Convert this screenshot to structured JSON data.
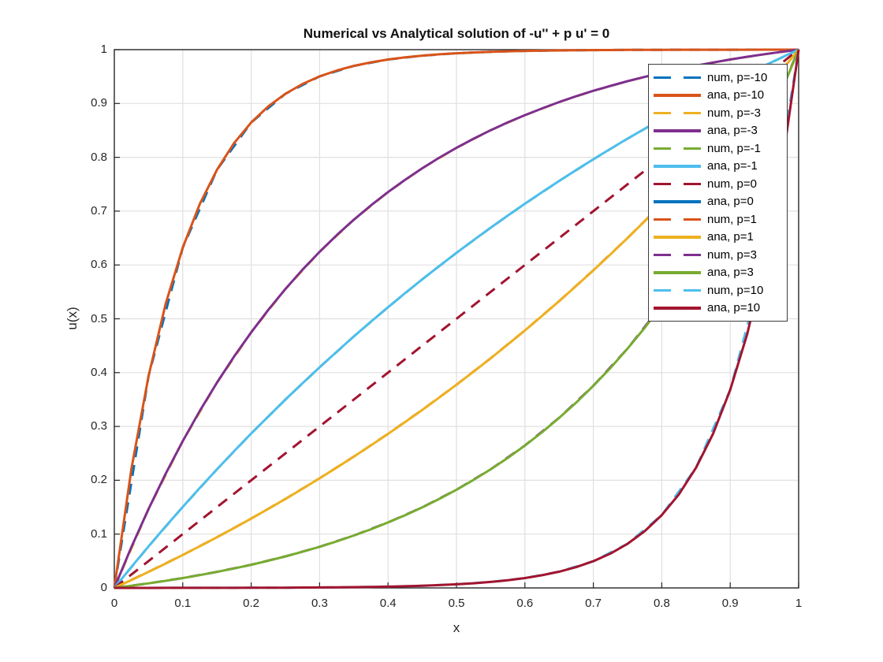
{
  "figure": {
    "title": "Numerical vs Analytical solution of -u'' + p u' = 0",
    "xlabel": "x",
    "ylabel": "u(x)",
    "background": "#ffffff"
  },
  "style_colors": {
    "axis": "#262626",
    "grid": "#e0e0e0",
    "tick_text": "#262626",
    "legend_border": "#3c3c3c",
    "legend_background": "#ffffff"
  },
  "chart_data": {
    "type": "line",
    "title": "Numerical vs Analytical solution of -u'' + p u' = 0",
    "xlabel": "x",
    "ylabel": "u(x)",
    "xlim": [
      0,
      1
    ],
    "ylim": [
      0,
      1
    ],
    "grid": true,
    "legend_location": "northeast",
    "x_tick_values": [
      0,
      0.1,
      0.2,
      0.3,
      0.4,
      0.5,
      0.6,
      0.7,
      0.8,
      0.9,
      1
    ],
    "x_tick_labels": [
      "0",
      "0.1",
      "0.2",
      "0.3",
      "0.4",
      "0.5",
      "0.6",
      "0.7",
      "0.8",
      "0.9",
      "1"
    ],
    "y_tick_values": [
      0,
      0.1,
      0.2,
      0.3,
      0.4,
      0.5,
      0.6,
      0.7,
      0.8,
      0.9,
      1
    ],
    "y_tick_labels": [
      "0",
      "0.1",
      "0.2",
      "0.3",
      "0.4",
      "0.5",
      "0.6",
      "0.7",
      "0.8",
      "0.9",
      "1"
    ],
    "p_values": [
      -10,
      -3,
      -1,
      0,
      1,
      3,
      10
    ],
    "x_num": [
      0,
      0.05,
      0.1,
      0.15,
      0.2,
      0.25,
      0.3,
      0.35,
      0.4,
      0.45,
      0.5,
      0.55,
      0.6,
      0.65,
      0.7,
      0.75,
      0.8,
      0.85,
      0.9,
      0.95,
      1
    ],
    "x_ana": [
      0,
      0.025,
      0.05,
      0.075,
      0.1,
      0.125,
      0.15,
      0.175,
      0.2,
      0.225,
      0.25,
      0.275,
      0.3,
      0.325,
      0.35,
      0.375,
      0.4,
      0.425,
      0.45,
      0.475,
      0.5,
      0.525,
      0.55,
      0.575,
      0.6,
      0.625,
      0.65,
      0.675,
      0.7,
      0.725,
      0.75,
      0.775,
      0.8,
      0.825,
      0.85,
      0.875,
      0.9,
      0.925,
      0.95,
      0.975,
      1
    ],
    "series": [
      {
        "label": "num, p=-10",
        "p": -10,
        "kind": "numerical",
        "style": "dashed",
        "color": "#0072BD",
        "grid": "num",
        "u": [
          0,
          0.3935,
          0.6322,
          0.7769,
          0.8647,
          0.918,
          0.9503,
          0.9698,
          0.9817,
          0.9889,
          0.9933,
          0.996,
          0.9976,
          0.9985,
          0.9991,
          0.9995,
          0.9997,
          0.9998,
          0.9999,
          1,
          1
        ]
      },
      {
        "label": "ana, p=-10",
        "p": -10,
        "kind": "analytical",
        "style": "solid",
        "color": "#D95319",
        "grid": "ana",
        "u": [
          0,
          0.2212,
          0.3935,
          0.5277,
          0.6322,
          0.7135,
          0.7769,
          0.8263,
          0.8647,
          0.8946,
          0.918,
          0.9361,
          0.9503,
          0.9612,
          0.9698,
          0.9765,
          0.9817,
          0.9857,
          0.9889,
          0.9914,
          0.9933,
          0.9948,
          0.996,
          0.9969,
          0.9976,
          0.9981,
          0.9985,
          0.9989,
          0.9991,
          0.9993,
          0.9995,
          0.9996,
          0.9997,
          0.9998,
          0.9998,
          0.9999,
          0.9999,
          0.9999,
          1,
          1,
          1
        ]
      },
      {
        "label": "num, p=-3",
        "p": -3,
        "kind": "numerical",
        "style": "dashed",
        "color": "#EDB120",
        "grid": "num",
        "u": [
          0,
          0.1466,
          0.2728,
          0.3814,
          0.4748,
          0.5553,
          0.6245,
          0.6841,
          0.7354,
          0.7796,
          0.8176,
          0.8503,
          0.8784,
          0.9027,
          0.9235,
          0.9415,
          0.9569,
          0.9702,
          0.9817,
          0.9915,
          1
        ]
      },
      {
        "label": "ana, p=-3",
        "p": -3,
        "kind": "analytical",
        "style": "solid",
        "color": "#7E2F8E",
        "grid": "ana",
        "u": [
          0,
          0.076,
          0.1466,
          0.212,
          0.2728,
          0.3291,
          0.3814,
          0.4298,
          0.4748,
          0.5166,
          0.5553,
          0.5912,
          0.6245,
          0.6554,
          0.6841,
          0.7107,
          0.7354,
          0.7583,
          0.7796,
          0.7994,
          0.8176,
          0.8345,
          0.8503,
          0.8648,
          0.8784,
          0.8908,
          0.9027,
          0.9134,
          0.9235,
          0.9326,
          0.9415,
          0.9494,
          0.9569,
          0.9639,
          0.9702,
          0.9762,
          0.9817,
          0.9868,
          0.9915,
          0.9959,
          1
        ]
      },
      {
        "label": "num, p=-1",
        "p": -1,
        "kind": "numerical",
        "style": "dashed",
        "color": "#77AC30",
        "grid": "num",
        "u": [
          0,
          0.0771,
          0.1505,
          0.2204,
          0.2868,
          0.3499,
          0.41,
          0.4672,
          0.5215,
          0.5733,
          0.6225,
          0.6693,
          0.7138,
          0.7561,
          0.7964,
          0.8347,
          0.8712,
          0.9058,
          0.9388,
          0.9702,
          1
        ]
      },
      {
        "label": "ana, p=-1",
        "p": -1,
        "kind": "analytical",
        "style": "solid",
        "color": "#4DBEEE",
        "grid": "ana",
        "u": [
          0,
          0.0391,
          0.0771,
          0.1143,
          0.1505,
          0.1859,
          0.2204,
          0.254,
          0.2868,
          0.3186,
          0.3499,
          0.3802,
          0.41,
          0.4388,
          0.4672,
          0.4947,
          0.5215,
          0.5477,
          0.5733,
          0.5983,
          0.6225,
          0.6461,
          0.6693,
          0.6918,
          0.7138,
          0.7352,
          0.7561,
          0.7765,
          0.7964,
          0.8156,
          0.8347,
          0.853,
          0.8712,
          0.8887,
          0.9058,
          0.9225,
          0.9388,
          0.9547,
          0.9702,
          0.9854,
          1
        ]
      },
      {
        "label": "num, p=0",
        "p": 0,
        "kind": "numerical",
        "style": "dashed",
        "color": "#A2142F",
        "grid": "num",
        "u": [
          0,
          0.05,
          0.1,
          0.15,
          0.2,
          0.25,
          0.3,
          0.35,
          0.4,
          0.45,
          0.5,
          0.55,
          0.6,
          0.65,
          0.7,
          0.75,
          0.8,
          0.85,
          0.9,
          0.95,
          1
        ]
      },
      {
        "label": "ana, p=0",
        "p": 0,
        "kind": "analytical",
        "style": "solid",
        "color": "#0072BD",
        "grid": "ana",
        "u": null,
        "note": "no line visible in plot (analytic formula is 0/0 at p=0); legend entry only"
      },
      {
        "label": "num, p=1",
        "p": 1,
        "kind": "numerical",
        "style": "dashed",
        "color": "#D95319",
        "grid": "num",
        "u": [
          0,
          0.0298,
          0.0612,
          0.0942,
          0.1289,
          0.1653,
          0.2036,
          0.2439,
          0.2862,
          0.3307,
          0.3775,
          0.4267,
          0.4784,
          0.5328,
          0.59,
          0.6501,
          0.7132,
          0.7796,
          0.8494,
          0.9228,
          1
        ]
      },
      {
        "label": "ana, p=1",
        "p": 1,
        "kind": "analytical",
        "style": "solid",
        "color": "#EDB120",
        "grid": "ana",
        "u": [
          0,
          0.0147,
          0.0298,
          0.0453,
          0.0612,
          0.0775,
          0.0942,
          0.1113,
          0.1289,
          0.1468,
          0.1653,
          0.1842,
          0.2036,
          0.2235,
          0.2439,
          0.2648,
          0.2862,
          0.3082,
          0.3307,
          0.3539,
          0.3775,
          0.4018,
          0.4267,
          0.4523,
          0.4784,
          0.5053,
          0.5328,
          0.5611,
          0.59,
          0.6196,
          0.6501,
          0.6813,
          0.7132,
          0.746,
          0.7796,
          0.8141,
          0.8494,
          0.8857,
          0.9228,
          0.9609,
          1
        ]
      },
      {
        "label": "num, p=3",
        "p": 3,
        "kind": "numerical",
        "style": "dashed",
        "color": "#7E2F8E",
        "grid": "num",
        "u": [
          0,
          0.0085,
          0.0183,
          0.0298,
          0.0431,
          0.0585,
          0.0765,
          0.0973,
          0.1216,
          0.1497,
          0.1824,
          0.2204,
          0.2646,
          0.3159,
          0.3755,
          0.4447,
          0.5252,
          0.6186,
          0.7272,
          0.8534,
          1
        ]
      },
      {
        "label": "ana, p=3",
        "p": 3,
        "kind": "analytical",
        "style": "solid",
        "color": "#77AC30",
        "grid": "ana",
        "u": [
          0,
          0.0041,
          0.0085,
          0.0132,
          0.0183,
          0.0238,
          0.0298,
          0.0362,
          0.0431,
          0.0505,
          0.0585,
          0.0672,
          0.0765,
          0.0865,
          0.0973,
          0.109,
          0.1216,
          0.1351,
          0.1497,
          0.1654,
          0.1824,
          0.2007,
          0.2204,
          0.2416,
          0.2646,
          0.2892,
          0.3159,
          0.3444,
          0.3755,
          0.4086,
          0.4447,
          0.4832,
          0.5252,
          0.5699,
          0.6186,
          0.6706,
          0.7272,
          0.7875,
          0.8534,
          0.9234,
          1
        ]
      },
      {
        "label": "num, p=10",
        "p": 10,
        "kind": "numerical",
        "style": "dashed",
        "color": "#4DBEEE",
        "grid": "num",
        "u": [
          0,
          0,
          0.0001,
          0.0002,
          0.0003,
          0.0005,
          0.0009,
          0.0015,
          0.0024,
          0.004,
          0.0067,
          0.0111,
          0.0183,
          0.0302,
          0.0497,
          0.082,
          0.1353,
          0.2231,
          0.3679,
          0.6065,
          1
        ]
      },
      {
        "label": "ana, p=10",
        "p": 10,
        "kind": "analytical",
        "style": "solid",
        "color": "#A2142F",
        "grid": "ana",
        "u": [
          0,
          0,
          0,
          0.0001,
          0.0001,
          0.0001,
          0.0002,
          0.0002,
          0.0003,
          0.0004,
          0.0005,
          0.0007,
          0.0009,
          0.0011,
          0.0015,
          0.0019,
          0.0024,
          0.0031,
          0.004,
          0.0052,
          0.0067,
          0.0086,
          0.0111,
          0.0142,
          0.0183,
          0.0235,
          0.0302,
          0.0387,
          0.0497,
          0.0639,
          0.082,
          0.1054,
          0.1353,
          0.1738,
          0.2231,
          0.2865,
          0.3679,
          0.4724,
          0.6065,
          0.7788,
          1
        ]
      }
    ]
  }
}
